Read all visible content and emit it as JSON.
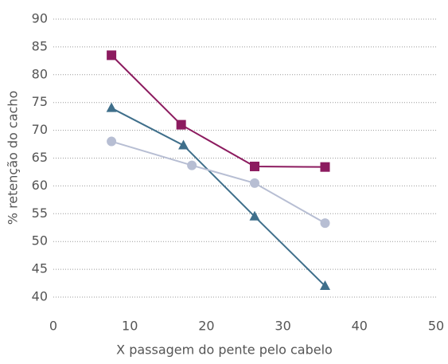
{
  "chart_data": {
    "type": "line",
    "x_label": "X passagem do pente pelo cabelo",
    "y_label": "% retenção do cacho",
    "xlim": [
      0,
      50
    ],
    "xticks": [
      0,
      10,
      20,
      30,
      40,
      50
    ],
    "ylim": [
      40,
      90
    ],
    "yticks": [
      40,
      45,
      50,
      55,
      60,
      65,
      70,
      75,
      80,
      85,
      90
    ],
    "grid": true,
    "series": [
      {
        "color": "#8c1b5f",
        "marker": "square",
        "x": [
          7.6,
          16.7,
          26.3,
          35.5
        ],
        "values": [
          83.5,
          71,
          63.5,
          63.4
        ]
      },
      {
        "color": "#3f6f8b",
        "marker": "triangle",
        "x": [
          7.6,
          17,
          26.3,
          35.5
        ],
        "values": [
          74,
          67.3,
          54.5,
          42
        ]
      },
      {
        "color": "#b7bed3",
        "marker": "circle",
        "x": [
          7.6,
          18.1,
          26.3,
          35.5
        ],
        "values": [
          68,
          63.7,
          60.5,
          53.3
        ]
      }
    ]
  }
}
